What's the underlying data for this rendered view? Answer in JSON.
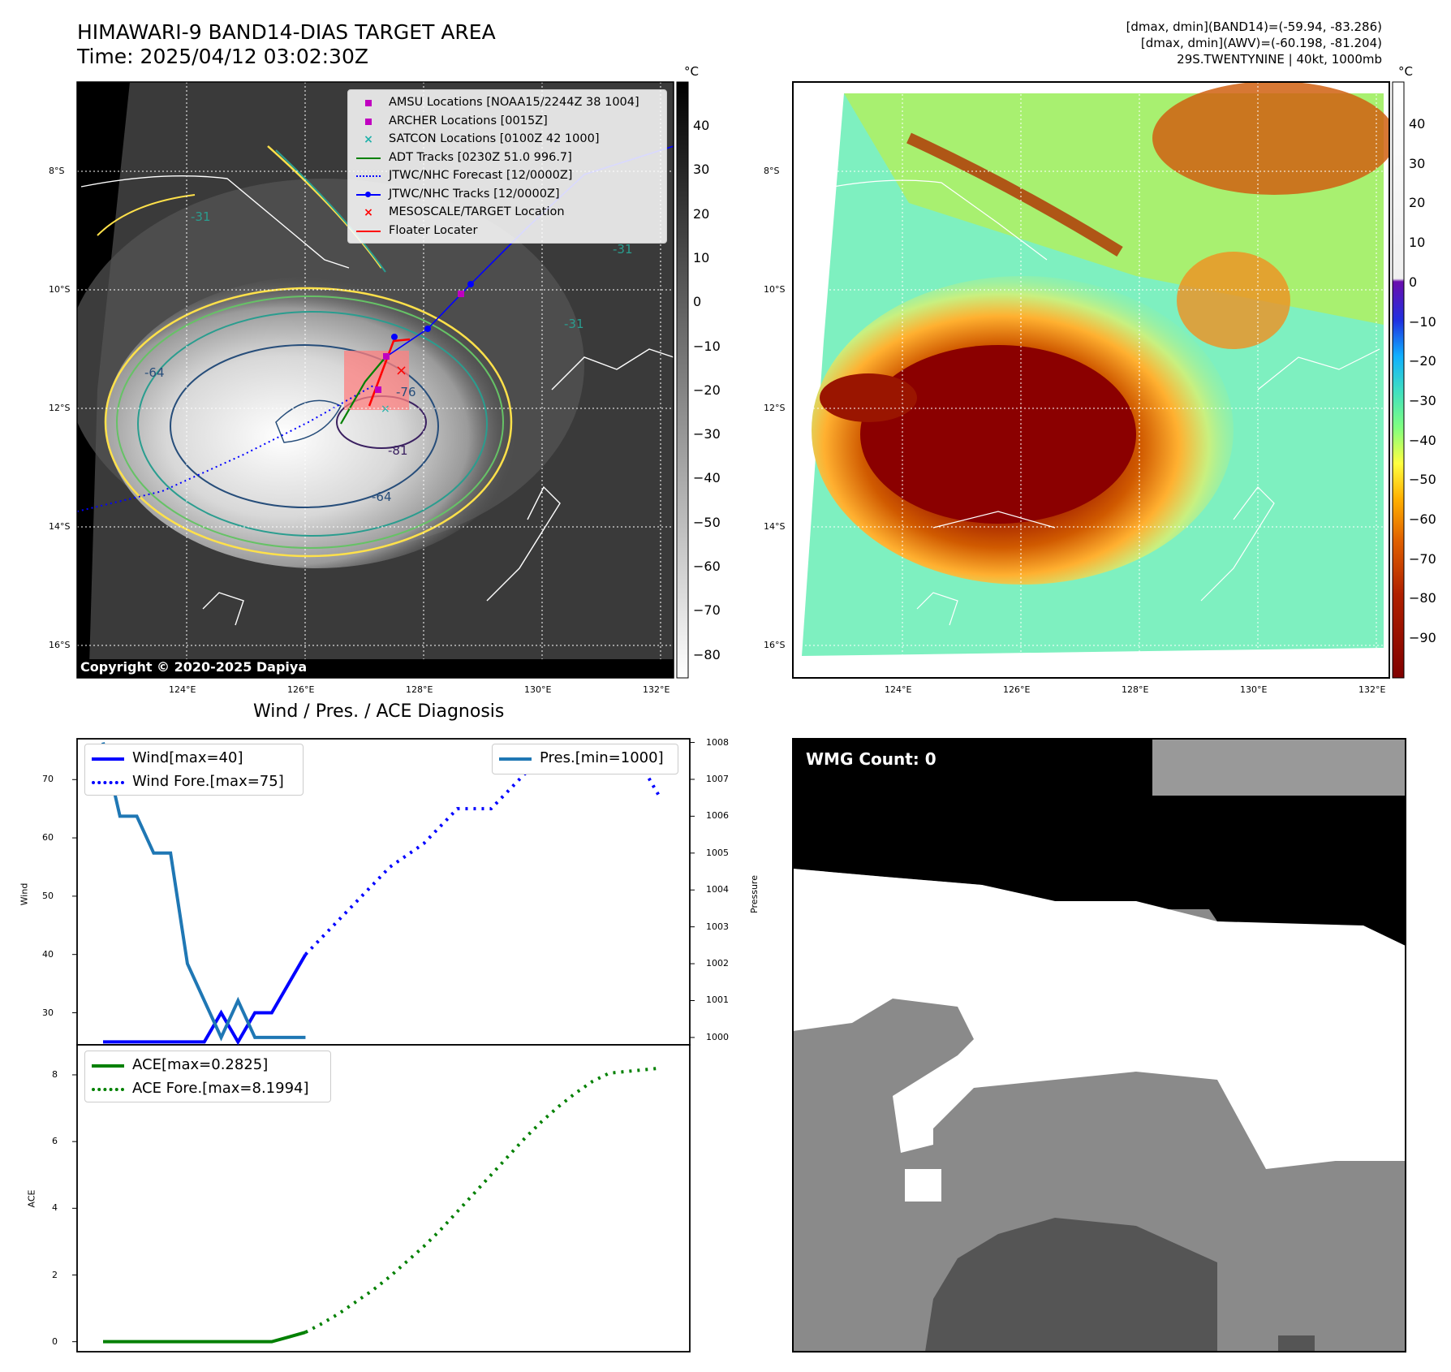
{
  "top_left": {
    "title_line1": "HIMAWARI-9 BAND14-DIAS TARGET AREA",
    "title_line2": "Time: 2025/04/12 03:02:30Z",
    "colorbar_unit": "°C",
    "colorbar_ticks": [
      "40",
      "30",
      "20",
      "10",
      "0",
      "−10",
      "−20",
      "−30",
      "−40",
      "−50",
      "−60",
      "−70",
      "−80"
    ],
    "lat_labels": [
      "8°S",
      "10°S",
      "12°S",
      "14°S",
      "16°S"
    ],
    "lon_labels": [
      "124°E",
      "126°E",
      "128°E",
      "130°E",
      "132°E"
    ],
    "contour_labels": [
      "-31",
      "-31",
      "-31",
      "-64",
      "-64",
      "-76",
      "-81"
    ],
    "copyright": "Copyright © 2020-2025 Dapiya",
    "legend": [
      {
        "label": "AMSU Locations [NOAA15/2244Z 38 1004]",
        "marker": "square",
        "color": "#c000c0"
      },
      {
        "label": "ARCHER Locations [0015Z]",
        "marker": "square",
        "color": "#c000c0"
      },
      {
        "label": "SATCON Locations [0100Z 42 1000]",
        "marker": "x",
        "color": "#20b2aa"
      },
      {
        "label": "ADT Tracks [0230Z 51.0 996.7]",
        "marker": "line",
        "color": "#008000"
      },
      {
        "label": "JTWC/NHC Forecast [12/0000Z]",
        "marker": "dotted",
        "color": "#0000ff"
      },
      {
        "label": "JTWC/NHC Tracks [12/0000Z]",
        "marker": "line-dot",
        "color": "#0000ff"
      },
      {
        "label": "MESOSCALE/TARGET Location",
        "marker": "x",
        "color": "#ff0000"
      },
      {
        "label": "Floater Locater",
        "marker": "line",
        "color": "#ff0000"
      }
    ]
  },
  "top_right": {
    "stats_line1": "[dmax, dmin](BAND14)=(-59.94, -83.286)",
    "stats_line2": "[dmax, dmin](AWV)=(-60.198, -81.204)",
    "stats_line3": "29S.TWENTYNINE | 40kt, 1000mb",
    "colorbar_unit": "°C",
    "colorbar_ticks": [
      "40",
      "30",
      "20",
      "10",
      "0",
      "−10",
      "−20",
      "−30",
      "−40",
      "−50",
      "−60",
      "−70",
      "−80",
      "−90"
    ],
    "lat_labels": [
      "8°S",
      "10°S",
      "12°S",
      "14°S",
      "16°S"
    ],
    "lon_labels": [
      "124°E",
      "126°E",
      "128°E",
      "130°E",
      "132°E"
    ]
  },
  "bottom_right": {
    "label": "WMG Count: 0"
  },
  "chart_data": [
    {
      "type": "line",
      "title": "Wind / Pres. / ACE Diagnosis",
      "ylabel": "Wind",
      "y2label": "Pressure",
      "x": [
        0,
        1,
        2,
        3,
        4,
        5,
        6,
        7,
        8,
        9,
        10,
        11,
        12,
        13,
        14,
        15,
        16,
        17,
        18,
        19,
        20,
        21,
        22,
        23,
        24,
        25,
        26,
        27,
        28,
        29,
        30,
        31,
        32,
        33
      ],
      "ylim": [
        24.5,
        77
      ],
      "y2lim": [
        999.8,
        1008.1
      ],
      "yticks": [
        "30",
        "40",
        "50",
        "60",
        "70"
      ],
      "y2ticks": [
        "1000",
        "1001",
        "1002",
        "1003",
        "1004",
        "1005",
        "1006",
        "1007",
        "1008"
      ],
      "series": [
        {
          "name": "Wind[max=40]",
          "axis": "left",
          "style": "solid",
          "color": "#0000ff",
          "x": [
            0,
            1,
            2,
            3,
            4,
            5,
            6,
            7,
            8,
            9,
            10,
            11,
            12
          ],
          "values": [
            25,
            25,
            25,
            25,
            25,
            25,
            25,
            30,
            25,
            30,
            30,
            35,
            40
          ]
        },
        {
          "name": "Wind Fore.[max=75]",
          "axis": "left",
          "style": "dotted",
          "color": "#0000ff",
          "x": [
            12,
            13,
            14,
            15,
            16,
            17,
            18,
            19,
            20,
            21,
            22,
            23,
            24,
            25,
            26,
            27,
            28,
            29,
            30,
            31,
            32,
            33
          ],
          "values": [
            40,
            43,
            46,
            49,
            52,
            55,
            57,
            59,
            62,
            65,
            65,
            65,
            68,
            71,
            73,
            75,
            75,
            75,
            75,
            72,
            72,
            67
          ]
        },
        {
          "name": "Pres.[min=1000]",
          "axis": "right",
          "style": "solid",
          "color": "#1f77b4",
          "x": [
            0,
            1,
            2,
            3,
            4,
            5,
            6,
            7,
            8,
            9,
            10,
            11,
            12
          ],
          "values": [
            1008,
            1006,
            1006,
            1005,
            1005,
            1002,
            1001,
            1000,
            1001,
            1000,
            1000,
            1000,
            1000
          ]
        }
      ],
      "legend_left": [
        "Wind[max=40]",
        "Wind Fore.[max=75]"
      ],
      "legend_right": [
        "Pres.[min=1000]"
      ]
    },
    {
      "type": "line",
      "ylabel": "ACE",
      "ylim": [
        -0.3,
        8.9
      ],
      "yticks": [
        "0",
        "2",
        "4",
        "6",
        "8"
      ],
      "series": [
        {
          "name": "ACE[max=0.2825]",
          "style": "solid",
          "color": "#008000",
          "x": [
            0,
            1,
            2,
            3,
            4,
            5,
            6,
            7,
            8,
            9,
            10,
            11,
            12
          ],
          "values": [
            0,
            0,
            0,
            0,
            0,
            0,
            0,
            0,
            0,
            0,
            0,
            0.14,
            0.2825
          ]
        },
        {
          "name": "ACE Fore.[max=8.1994]",
          "style": "dotted",
          "color": "#008000",
          "x": [
            12,
            13,
            14,
            15,
            16,
            17,
            18,
            19,
            20,
            21,
            22,
            23,
            24,
            25,
            26,
            27,
            28,
            29,
            30,
            31,
            32,
            33
          ],
          "values": [
            0.2825,
            0.55,
            0.85,
            1.2,
            1.55,
            1.95,
            2.4,
            2.85,
            3.35,
            3.9,
            4.45,
            5.0,
            5.55,
            6.1,
            6.6,
            7.05,
            7.45,
            7.8,
            8.05,
            8.1,
            8.15,
            8.1994
          ]
        }
      ]
    }
  ]
}
